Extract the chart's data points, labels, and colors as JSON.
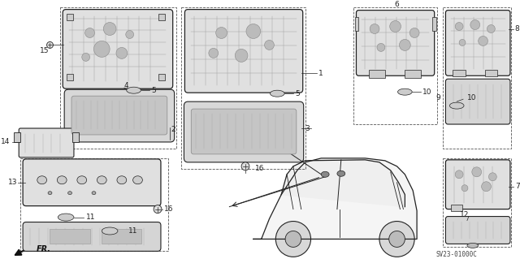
{
  "bg_color": "#ffffff",
  "line_color": "#222222",
  "gray_light": "#e8e8e8",
  "gray_med": "#cccccc",
  "gray_dark": "#999999",
  "diagram_code": "SV23-01000C",
  "figsize": [
    6.4,
    3.19
  ],
  "dpi": 100
}
